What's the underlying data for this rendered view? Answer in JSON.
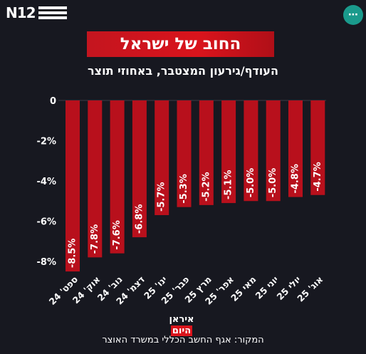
{
  "header": {
    "logo_text": "N12",
    "menu_label": "⋯"
  },
  "title": "החוב של ישראל",
  "subtitle": "העודף/גירעון המצטבר, באחוזי תוצר",
  "annotation": {
    "line1": "איראן",
    "line2": "היום"
  },
  "source": "המקור: אגף החשב הכללי במשרד האוצר",
  "colors": {
    "background": "#171820",
    "bar": "#b8101c",
    "title_box": "#d9141c",
    "menu_button": "#1a9a8c"
  },
  "chart_data": {
    "type": "bar",
    "categories": [
      "ספט' 24",
      "אוק' 24",
      "נוב' 24",
      "דצמ' 24",
      "ינו' 25",
      "פבר' 25",
      "מרץ 25",
      "אפר' 25",
      "מאי 25",
      "יוני 25",
      "יולי 25",
      "אוג' 25"
    ],
    "values": [
      -8.5,
      -7.8,
      -7.6,
      -6.8,
      -5.7,
      -5.3,
      -5.2,
      -5.1,
      -5.0,
      -5.0,
      -4.8,
      -4.7
    ],
    "value_labels": [
      "-8.5%",
      "-7.8%",
      "-7.6%",
      "-6.8%",
      "-5.7%",
      "-5.3%",
      "-5.2%",
      "-5.1%",
      "-5.0%",
      "-5.0%",
      "-4.8%",
      "-4.7%"
    ],
    "yticks": [
      0,
      -2,
      -4,
      -6,
      -8
    ],
    "ytick_labels": [
      "0",
      "-2%",
      "-4%",
      "-6%",
      "-8%"
    ],
    "ylim": [
      -9,
      0
    ],
    "grid": false
  }
}
